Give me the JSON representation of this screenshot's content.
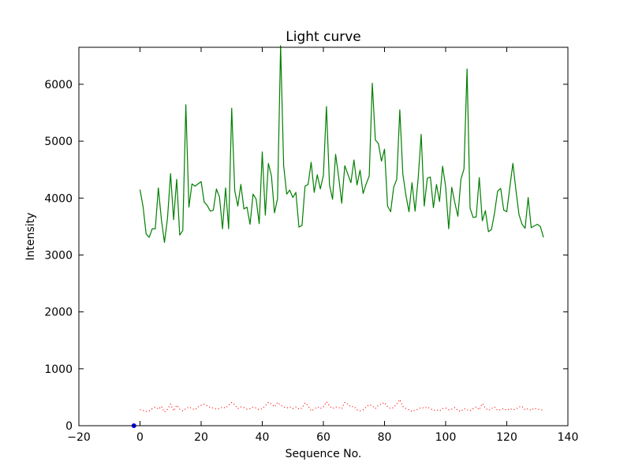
{
  "chart_data": {
    "type": "line",
    "title": "Light curve",
    "xlabel": "Sequence No.",
    "ylabel": "Intensity",
    "xlim": [
      -20,
      140
    ],
    "ylim": [
      0,
      6650
    ],
    "xticks": [
      -20,
      0,
      20,
      40,
      60,
      80,
      100,
      120,
      140
    ],
    "yticks": [
      0,
      1000,
      2000,
      3000,
      4000,
      5000,
      6000
    ],
    "grid": false,
    "legend": "none",
    "series": [
      {
        "color": "#007f00",
        "style": "solid",
        "x": [
          0,
          1,
          2,
          3,
          4,
          5,
          6,
          7,
          8,
          9,
          10,
          11,
          12,
          13,
          14,
          15,
          16,
          17,
          18,
          19,
          20,
          21,
          22,
          23,
          24,
          25,
          26,
          27,
          28,
          29,
          30,
          31,
          32,
          33,
          34,
          35,
          36,
          37,
          38,
          39,
          40,
          41,
          42,
          43,
          44,
          45,
          46,
          47,
          48,
          49,
          50,
          51,
          52,
          53,
          54,
          55,
          56,
          57,
          58,
          59,
          60,
          61,
          62,
          63,
          64,
          65,
          66,
          67,
          68,
          69,
          70,
          71,
          72,
          73,
          74,
          75,
          76,
          77,
          78,
          79,
          80,
          81,
          82,
          83,
          84,
          85,
          86,
          87,
          88,
          89,
          90,
          91,
          92,
          93,
          94,
          95,
          96,
          97,
          98,
          99,
          100,
          101,
          102,
          103,
          104,
          105,
          106,
          107,
          108,
          109,
          110,
          111,
          112,
          113,
          114,
          115,
          116,
          117,
          118,
          119,
          120,
          121,
          122,
          123,
          124,
          125,
          126,
          127,
          128,
          129,
          130,
          131,
          132
        ],
        "values": [
          4150,
          3850,
          3370,
          3310,
          3460,
          3460,
          4180,
          3620,
          3220,
          3650,
          4430,
          3620,
          4330,
          3350,
          3430,
          5640,
          3840,
          4250,
          4210,
          4250,
          4290,
          3930,
          3870,
          3770,
          3790,
          4160,
          4020,
          3460,
          4180,
          3460,
          5580,
          4130,
          3860,
          4240,
          3810,
          3840,
          3540,
          4070,
          3980,
          3550,
          4810,
          3700,
          4610,
          4390,
          3740,
          3990,
          6680,
          4570,
          4070,
          4140,
          4010,
          4100,
          3490,
          3520,
          4210,
          4240,
          4630,
          4100,
          4410,
          4160,
          4400,
          5610,
          4230,
          3980,
          4770,
          4370,
          3910,
          4570,
          4420,
          4270,
          4670,
          4230,
          4490,
          4080,
          4250,
          4390,
          6020,
          5020,
          4960,
          4650,
          4860,
          3860,
          3760,
          4190,
          4330,
          5550,
          4420,
          4050,
          3760,
          4270,
          3770,
          4340,
          5120,
          3860,
          4350,
          4370,
          3830,
          4240,
          3940,
          4560,
          4200,
          3460,
          4190,
          3920,
          3680,
          4330,
          4510,
          6270,
          3820,
          3660,
          3670,
          4360,
          3600,
          3780,
          3410,
          3450,
          3740,
          4120,
          4170,
          3790,
          3760,
          4190,
          4610,
          4140,
          3710,
          3540,
          3470,
          4010,
          3480,
          3510,
          3540,
          3500,
          3310
        ]
      },
      {
        "color": "#ff0000",
        "style": "dotted",
        "x": [
          0,
          1,
          2,
          3,
          4,
          5,
          6,
          7,
          8,
          9,
          10,
          11,
          12,
          13,
          14,
          15,
          16,
          17,
          18,
          19,
          20,
          21,
          22,
          23,
          24,
          25,
          26,
          27,
          28,
          29,
          30,
          31,
          32,
          33,
          34,
          35,
          36,
          37,
          38,
          39,
          40,
          41,
          42,
          43,
          44,
          45,
          46,
          47,
          48,
          49,
          50,
          51,
          52,
          53,
          54,
          55,
          56,
          57,
          58,
          59,
          60,
          61,
          62,
          63,
          64,
          65,
          66,
          67,
          68,
          69,
          70,
          71,
          72,
          73,
          74,
          75,
          76,
          77,
          78,
          79,
          80,
          81,
          82,
          83,
          84,
          85,
          86,
          87,
          88,
          89,
          90,
          91,
          92,
          93,
          94,
          95,
          96,
          97,
          98,
          99,
          100,
          101,
          102,
          103,
          104,
          105,
          106,
          107,
          108,
          109,
          110,
          111,
          112,
          113,
          114,
          115,
          116,
          117,
          118,
          119,
          120,
          121,
          122,
          123,
          124,
          125,
          126,
          127,
          128,
          129,
          130,
          131,
          132
        ],
        "values": [
          280,
          270,
          250,
          260,
          300,
          330,
          290,
          340,
          240,
          290,
          380,
          260,
          360,
          290,
          260,
          300,
          330,
          300,
          280,
          330,
          360,
          380,
          350,
          320,
          310,
          290,
          300,
          330,
          310,
          360,
          410,
          370,
          300,
          330,
          320,
          290,
          300,
          330,
          310,
          280,
          300,
          350,
          410,
          380,
          330,
          410,
          360,
          330,
          310,
          330,
          300,
          330,
          290,
          310,
          400,
          350,
          260,
          290,
          330,
          300,
          330,
          420,
          350,
          300,
          330,
          320,
          300,
          410,
          380,
          330,
          340,
          280,
          260,
          280,
          330,
          370,
          350,
          300,
          360,
          380,
          410,
          330,
          300,
          320,
          380,
          460,
          340,
          300,
          280,
          250,
          270,
          290,
          320,
          310,
          330,
          300,
          270,
          280,
          260,
          300,
          310,
          280,
          290,
          320,
          270,
          250,
          300,
          280,
          260,
          300,
          330,
          280,
          390,
          310,
          270,
          300,
          330,
          270,
          280,
          300,
          270,
          300,
          280,
          290,
          330,
          340,
          280,
          300,
          270,
          310,
          290,
          280,
          270
        ]
      },
      {
        "color": "#0000ff",
        "style": "marker",
        "x": [
          -2
        ],
        "values": [
          0
        ]
      }
    ]
  }
}
